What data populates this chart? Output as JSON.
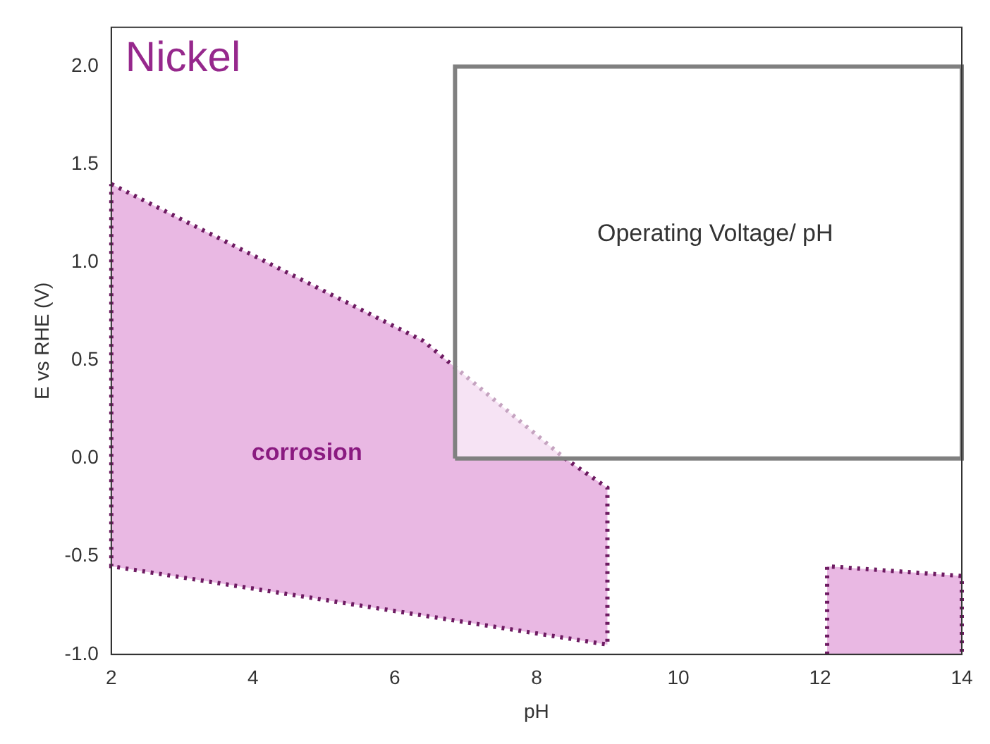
{
  "chart_data": {
    "type": "area",
    "xlabel": "pH",
    "ylabel": "E vs RHE (V)",
    "xlim": [
      2,
      14
    ],
    "ylim": [
      -1,
      2.2
    ],
    "xticks": [
      2,
      4,
      6,
      8,
      10,
      12,
      14
    ],
    "yticks": [
      {
        "value": -1,
        "label": "-1.0"
      },
      {
        "value": -0.5,
        "label": "-0.5"
      },
      {
        "value": 0,
        "label": "0.0"
      },
      {
        "value": 0.5,
        "label": "0.5"
      },
      {
        "value": 1,
        "label": "1.0"
      },
      {
        "value": 1.5,
        "label": "1.5"
      },
      {
        "value": 2,
        "label": "2.0"
      }
    ],
    "grid": false,
    "legend": false,
    "series": [
      {
        "color": "#e9b8e3",
        "line_style": "dotted",
        "x": [
          2,
          6.4,
          8.4,
          9.0,
          9.0,
          2,
          2
        ],
        "values": [
          1.4,
          0.6,
          0,
          -0.15,
          -0.95,
          -0.55,
          1.4
        ]
      },
      {
        "color": "#e9b8e3",
        "line_style": "dotted",
        "x": [
          12.1,
          12.1,
          14,
          14
        ],
        "values": [
          -1,
          -0.55,
          -0.6,
          -1
        ]
      },
      {
        "color": "#ffffff",
        "line_style": "solid",
        "x": [
          6.85,
          6.85,
          14,
          14,
          6.85
        ],
        "values": [
          0,
          2,
          2,
          0,
          0
        ]
      }
    ],
    "annotations": [
      "Nickel",
      "Operating Voltage/ pH",
      "corrosion"
    ]
  }
}
